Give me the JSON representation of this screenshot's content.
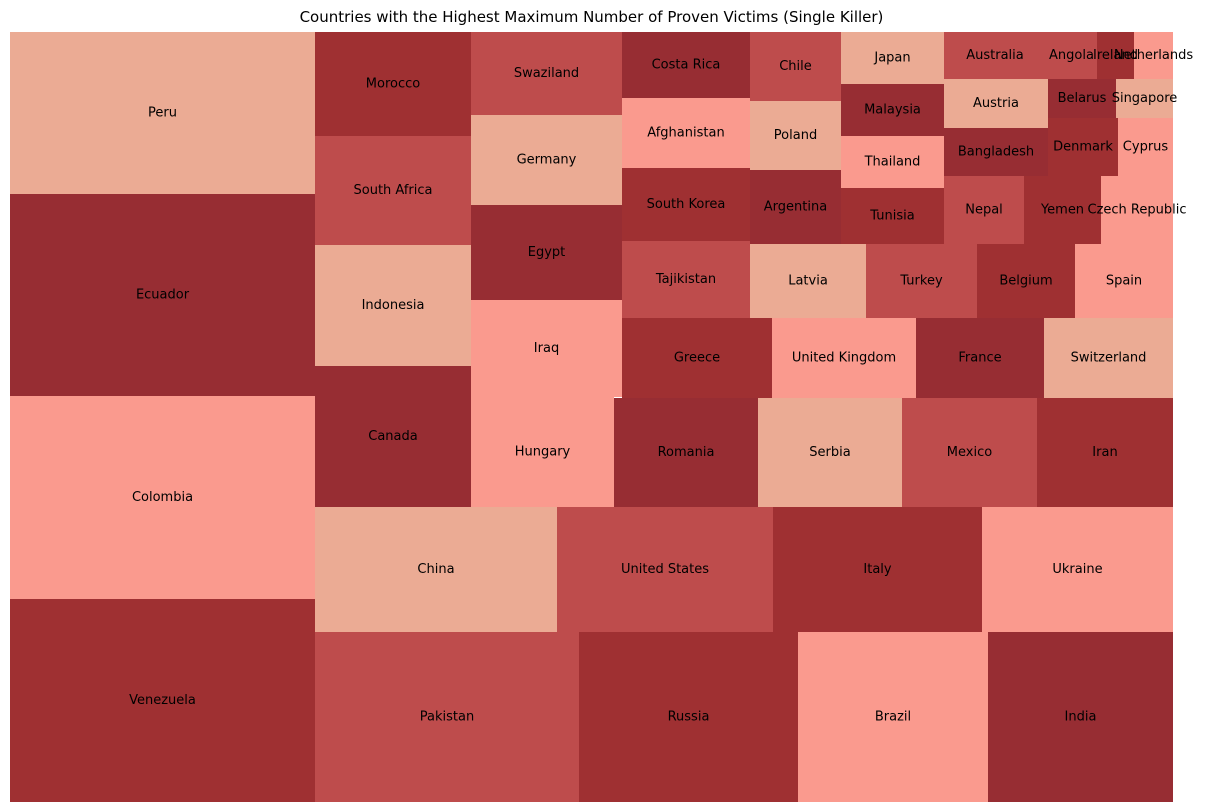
{
  "chart_data": {
    "type": "treemap",
    "title": "Countries with the Highest Maximum Number of Proven Victims (Single Killer)",
    "palette": [
      "#ebab94",
      "#972d33",
      "#fa9a8e",
      "#9f3032",
      "#be4c4c"
    ],
    "cells": [
      {
        "label": "Peru",
        "color": "#ebab94"
      },
      {
        "label": "Ecuador",
        "color": "#972d33"
      },
      {
        "label": "Colombia",
        "color": "#fa9a8e"
      },
      {
        "label": "Venezuela",
        "color": "#9f3032"
      },
      {
        "label": "Morocco",
        "color": "#9f3032"
      },
      {
        "label": "South Africa",
        "color": "#be4c4c"
      },
      {
        "label": "Indonesia",
        "color": "#ebab94"
      },
      {
        "label": "Canada",
        "color": "#972d33"
      },
      {
        "label": "Swaziland",
        "color": "#be4c4c"
      },
      {
        "label": "Germany",
        "color": "#ebab94"
      },
      {
        "label": "Egypt",
        "color": "#972d33"
      },
      {
        "label": "Iraq",
        "color": "#fa9a8e"
      },
      {
        "label": "Hungary",
        "color": "#fa9a8e"
      },
      {
        "label": "Costa Rica",
        "color": "#972d33"
      },
      {
        "label": "Afghanistan",
        "color": "#fa9a8e"
      },
      {
        "label": "South Korea",
        "color": "#9f3032"
      },
      {
        "label": "Tajikistan",
        "color": "#be4c4c"
      },
      {
        "label": "Chile",
        "color": "#be4c4c"
      },
      {
        "label": "Poland",
        "color": "#ebab94"
      },
      {
        "label": "Argentina",
        "color": "#972d33"
      },
      {
        "label": "Japan",
        "color": "#ebab94"
      },
      {
        "label": "Malaysia",
        "color": "#972d33"
      },
      {
        "label": "Thailand",
        "color": "#fa9a8e"
      },
      {
        "label": "Tunisia",
        "color": "#9f3032"
      },
      {
        "label": "Australia",
        "color": "#be4c4c"
      },
      {
        "label": "Austria",
        "color": "#ebab94"
      },
      {
        "label": "Bangladesh",
        "color": "#972d33"
      },
      {
        "label": "Nepal",
        "color": "#be4c4c"
      },
      {
        "label": "Angola",
        "color": "#be4c4c"
      },
      {
        "label": "Ireland",
        "color": "#9f3032"
      },
      {
        "label": "Netherlands",
        "color": "#fa9a8e"
      },
      {
        "label": "Belarus",
        "color": "#972d33"
      },
      {
        "label": "Singapore",
        "color": "#ebab94"
      },
      {
        "label": "Denmark",
        "color": "#9f3032"
      },
      {
        "label": "Cyprus",
        "color": "#fa9a8e"
      },
      {
        "label": "Yemen",
        "color": "#9f3032"
      },
      {
        "label": "Czech Republic",
        "color": "#fa9a8e"
      },
      {
        "label": "Latvia",
        "color": "#ebab94"
      },
      {
        "label": "Turkey",
        "color": "#be4c4c"
      },
      {
        "label": "Belgium",
        "color": "#9f3032"
      },
      {
        "label": "Spain",
        "color": "#fa9a8e"
      },
      {
        "label": "Greece",
        "color": "#9f3032"
      },
      {
        "label": "United Kingdom",
        "color": "#fa9a8e"
      },
      {
        "label": "France",
        "color": "#972d33"
      },
      {
        "label": "Switzerland",
        "color": "#ebab94"
      },
      {
        "label": "Romania",
        "color": "#972d33"
      },
      {
        "label": "Serbia",
        "color": "#ebab94"
      },
      {
        "label": "Mexico",
        "color": "#be4c4c"
      },
      {
        "label": "Iran",
        "color": "#9f3032"
      },
      {
        "label": "China",
        "color": "#ebab94"
      },
      {
        "label": "United States",
        "color": "#be4c4c"
      },
      {
        "label": "Italy",
        "color": "#9f3032"
      },
      {
        "label": "Ukraine",
        "color": "#fa9a8e"
      },
      {
        "label": "Pakistan",
        "color": "#be4c4c"
      },
      {
        "label": "Russia",
        "color": "#9f3032"
      },
      {
        "label": "Brazil",
        "color": "#fa9a8e"
      },
      {
        "label": "India",
        "color": "#972d33"
      }
    ]
  }
}
